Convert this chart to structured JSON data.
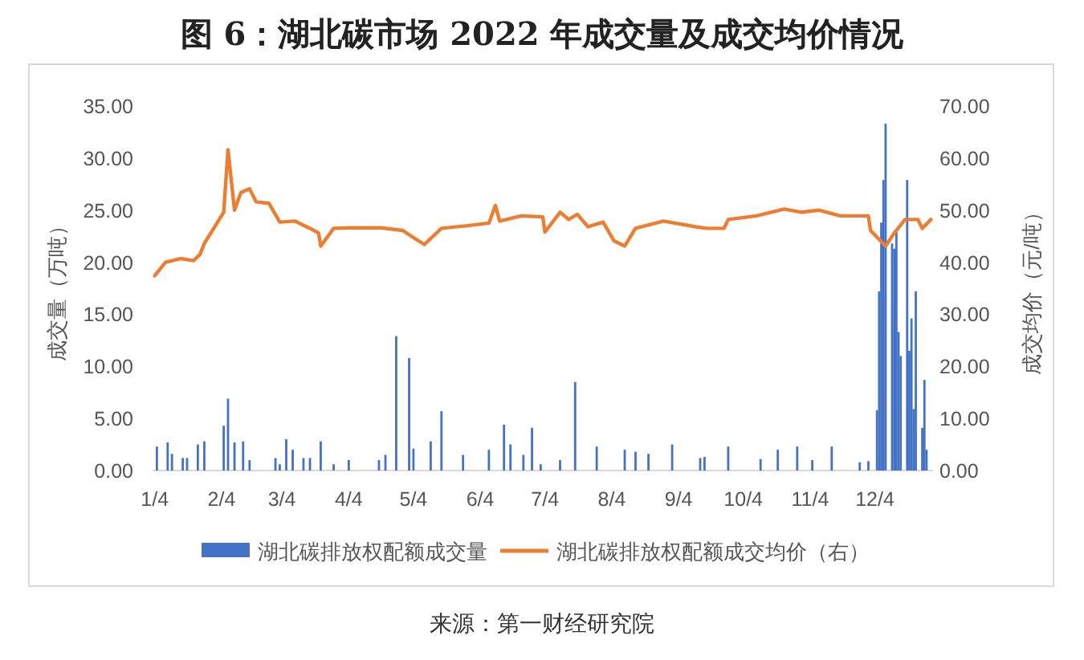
{
  "chart_data": {
    "type": "bar",
    "title": "图 6：湖北碳市场 2022 年成交量及成交均价情况",
    "ylabel": "成交量（万吨）",
    "y2label": "成交均价（元/吨）",
    "annotations": [
      "来源：第一财经研究院"
    ],
    "legend": "bottom",
    "xlim": [
      "--01-03",
      "--12-31"
    ],
    "xticks": [
      {
        "value": "--01-04",
        "label": "1/4"
      },
      {
        "value": "--02-04",
        "label": "2/4"
      },
      {
        "value": "--03-04",
        "label": "3/4"
      },
      {
        "value": "--04-04",
        "label": "4/4"
      },
      {
        "value": "--05-04",
        "label": "5/4"
      },
      {
        "value": "--06-04",
        "label": "6/4"
      },
      {
        "value": "--07-04",
        "label": "7/4"
      },
      {
        "value": "--08-04",
        "label": "8/4"
      },
      {
        "value": "--09-04",
        "label": "9/4"
      },
      {
        "value": "--10-04",
        "label": "10/4"
      },
      {
        "value": "--11-04",
        "label": "11/4"
      },
      {
        "value": "--12-04",
        "label": "12/4"
      }
    ],
    "ylim": [
      0,
      35
    ],
    "yticks": [
      {
        "value": 0,
        "label": "0.00"
      },
      {
        "value": 5,
        "label": "5.00"
      },
      {
        "value": 10,
        "label": "10.00"
      },
      {
        "value": 15,
        "label": "15.00"
      },
      {
        "value": 20,
        "label": "20.00"
      },
      {
        "value": 25,
        "label": "25.00"
      },
      {
        "value": 30,
        "label": "30.00"
      },
      {
        "value": 35,
        "label": "35.00"
      }
    ],
    "y2lim": [
      0,
      70
    ],
    "y2ticks": [
      {
        "value": 0,
        "label": "0.00"
      },
      {
        "value": 10,
        "label": "10.00"
      },
      {
        "value": 20,
        "label": "20.00"
      },
      {
        "value": 30,
        "label": "30.00"
      },
      {
        "value": 40,
        "label": "40.00"
      },
      {
        "value": 50,
        "label": "50.00"
      },
      {
        "value": 60,
        "label": "60.00"
      },
      {
        "value": 70,
        "label": "70.00"
      }
    ],
    "series": [
      {
        "name": "湖北碳排放权配额成交量",
        "color": "#4472c4",
        "x": [
          "--01-05",
          "--01-10",
          "--01-12",
          "--01-17",
          "--01-19",
          "--01-24",
          "--01-27",
          "--02-05",
          "--02-07",
          "--02-10",
          "--02-14",
          "--02-17",
          "--03-01",
          "--03-03",
          "--03-06",
          "--03-09",
          "--03-14",
          "--03-17",
          "--03-22",
          "--03-28",
          "--04-04",
          "--04-18",
          "--04-21",
          "--04-26",
          "--05-02",
          "--05-04",
          "--05-12",
          "--05-17",
          "--05-27",
          "--06-08",
          "--06-15",
          "--06-18",
          "--06-24",
          "--06-28",
          "--07-02",
          "--07-11",
          "--07-18",
          "--07-28",
          "--08-10",
          "--08-15",
          "--08-21",
          "--09-01",
          "--09-14",
          "--09-16",
          "--09-27",
          "--10-12",
          "--10-20",
          "--10-29",
          "--11-05",
          "--11-14",
          "--11-27",
          "--12-01",
          "--12-05",
          "--12-06",
          "--12-07",
          "--12-08",
          "--12-09",
          "--12-12",
          "--12-13",
          "--12-14",
          "--12-15",
          "--12-16",
          "--12-19",
          "--12-20",
          "--12-21",
          "--12-22",
          "--12-23",
          "--12-26",
          "--12-27",
          "--12-28"
        ],
        "values": [
          2.3,
          2.7,
          1.6,
          1.2,
          1.2,
          2.5,
          2.8,
          4.3,
          6.9,
          2.7,
          2.8,
          1.0,
          1.2,
          0.6,
          3.0,
          2.0,
          1.2,
          1.2,
          2.8,
          0.6,
          1.0,
          1.0,
          1.5,
          12.9,
          10.8,
          2.1,
          2.8,
          5.7,
          1.5,
          2.0,
          4.4,
          2.5,
          1.5,
          4.1,
          0.6,
          1.0,
          8.5,
          2.3,
          2.0,
          1.8,
          1.6,
          2.5,
          1.2,
          1.3,
          2.3,
          1.1,
          2.0,
          2.3,
          1.0,
          2.3,
          0.8,
          0.9,
          5.8,
          17.2,
          23.8,
          27.9,
          33.3,
          21.8,
          21.3,
          23.1,
          13.3,
          11.0,
          27.9,
          11.5,
          14.6,
          5.9,
          17.2,
          4.1,
          8.7,
          2.0
        ]
      },
      {
        "name": "湖北碳排放权配额成交均价（右）",
        "type": "line",
        "axis": "y2",
        "color": "#ed7d31",
        "x": [
          "--01-04",
          "--01-09",
          "--01-16",
          "--01-22",
          "--01-25",
          "--01-27",
          "--02-05",
          "--02-07",
          "--02-10",
          "--02-13",
          "--02-17",
          "--02-20",
          "--02-26",
          "--03-03",
          "--03-10",
          "--03-17",
          "--03-21",
          "--03-22",
          "--03-28",
          "--04-04",
          "--04-19",
          "--04-29",
          "--05-09",
          "--05-17",
          "--05-29",
          "--06-08",
          "--06-11",
          "--06-13",
          "--06-23",
          "--07-03",
          "--07-04",
          "--07-11",
          "--07-15",
          "--07-19",
          "--07-24",
          "--07-31",
          "--08-05",
          "--08-10",
          "--08-15",
          "--08-28",
          "--09-12",
          "--09-17",
          "--09-25",
          "--09-27",
          "--10-10",
          "--10-23",
          "--10-31",
          "--11-08",
          "--11-18",
          "--12-01",
          "--12-02",
          "--12-09",
          "--12-13",
          "--12-18",
          "--12-24",
          "--12-26",
          "--12-30"
        ],
        "values": [
          37.4,
          40.0,
          40.7,
          40.3,
          41.5,
          43.6,
          49.6,
          61.6,
          50.0,
          53.4,
          54.1,
          51.6,
          51.3,
          47.7,
          47.9,
          46.5,
          45.6,
          43.1,
          46.5,
          46.6,
          46.6,
          46.1,
          43.4,
          46.5,
          47.0,
          47.5,
          50.9,
          47.9,
          48.9,
          48.7,
          45.8,
          49.6,
          48.2,
          49.2,
          46.8,
          47.7,
          44.1,
          43.1,
          46.5,
          47.9,
          46.8,
          46.5,
          46.5,
          48.2,
          48.9,
          50.2,
          49.6,
          50.0,
          48.9,
          48.9,
          46.1,
          43.1,
          45.6,
          48.2,
          48.2,
          46.5,
          48.2
        ]
      }
    ]
  }
}
